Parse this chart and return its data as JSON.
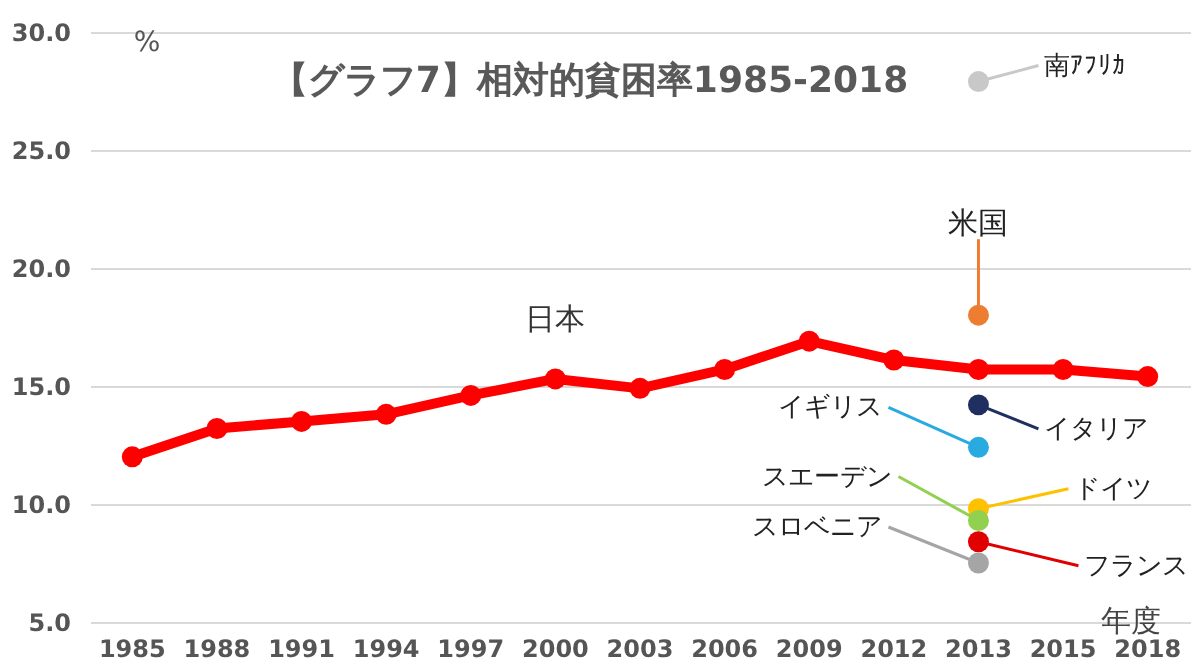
{
  "chart_data": {
    "type": "line",
    "title": "【グラフ7】相対的貧困率1985-2018",
    "xlabel": "年度",
    "ylabel": "%",
    "categories": [
      "1985",
      "1988",
      "1991",
      "1994",
      "1997",
      "2000",
      "2003",
      "2006",
      "2009",
      "2012",
      "2013",
      "2015",
      "2018"
    ],
    "series": [
      {
        "name": "日本",
        "color": "#ff0000",
        "marker": "circle",
        "values": [
          12.0,
          13.2,
          13.5,
          13.8,
          14.6,
          15.3,
          14.9,
          15.7,
          16.9,
          16.1,
          15.7,
          15.7,
          15.4
        ]
      },
      {
        "name": "南ｱﾌﾘｶ",
        "color": "#c8c8c8",
        "type": "scatter",
        "values": [
          null,
          null,
          null,
          null,
          null,
          null,
          null,
          null,
          null,
          null,
          27.9,
          null,
          null
        ]
      },
      {
        "name": "米国",
        "color": "#ed7d31",
        "type": "scatter",
        "values": [
          null,
          null,
          null,
          null,
          null,
          null,
          null,
          null,
          null,
          null,
          18.0,
          null,
          null
        ]
      },
      {
        "name": "イタリア",
        "color": "#1f2f5f",
        "type": "scatter",
        "values": [
          null,
          null,
          null,
          null,
          null,
          null,
          null,
          null,
          null,
          null,
          14.2,
          null,
          null
        ]
      },
      {
        "name": "イギリス",
        "color": "#29aae1",
        "type": "scatter",
        "values": [
          null,
          null,
          null,
          null,
          null,
          null,
          null,
          null,
          null,
          null,
          12.4,
          null,
          null
        ]
      },
      {
        "name": "ドイツ",
        "color": "#ffc000",
        "type": "scatter",
        "values": [
          null,
          null,
          null,
          null,
          null,
          null,
          null,
          null,
          null,
          null,
          9.8,
          null,
          null
        ]
      },
      {
        "name": "スエーデン",
        "color": "#92d050",
        "type": "scatter",
        "values": [
          null,
          null,
          null,
          null,
          null,
          null,
          null,
          null,
          null,
          null,
          9.3,
          null,
          null
        ]
      },
      {
        "name": "フランス",
        "color": "#e00000",
        "type": "scatter",
        "values": [
          null,
          null,
          null,
          null,
          null,
          null,
          null,
          null,
          null,
          null,
          8.4,
          null,
          null
        ]
      },
      {
        "name": "スロベニア",
        "color": "#a5a5a5",
        "type": "scatter",
        "values": [
          null,
          null,
          null,
          null,
          null,
          null,
          null,
          null,
          null,
          null,
          7.5,
          null,
          null
        ]
      }
    ],
    "ylim": [
      5,
      30
    ],
    "yticks": [
      {
        "value": 5,
        "label": "5.0"
      },
      {
        "value": 10,
        "label": "10.0"
      },
      {
        "value": 15,
        "label": "15.0"
      },
      {
        "value": 20,
        "label": "20.0"
      },
      {
        "value": 25,
        "label": "25.0"
      },
      {
        "value": 30,
        "label": "30.0"
      }
    ],
    "grid": "y",
    "legend": "right"
  }
}
